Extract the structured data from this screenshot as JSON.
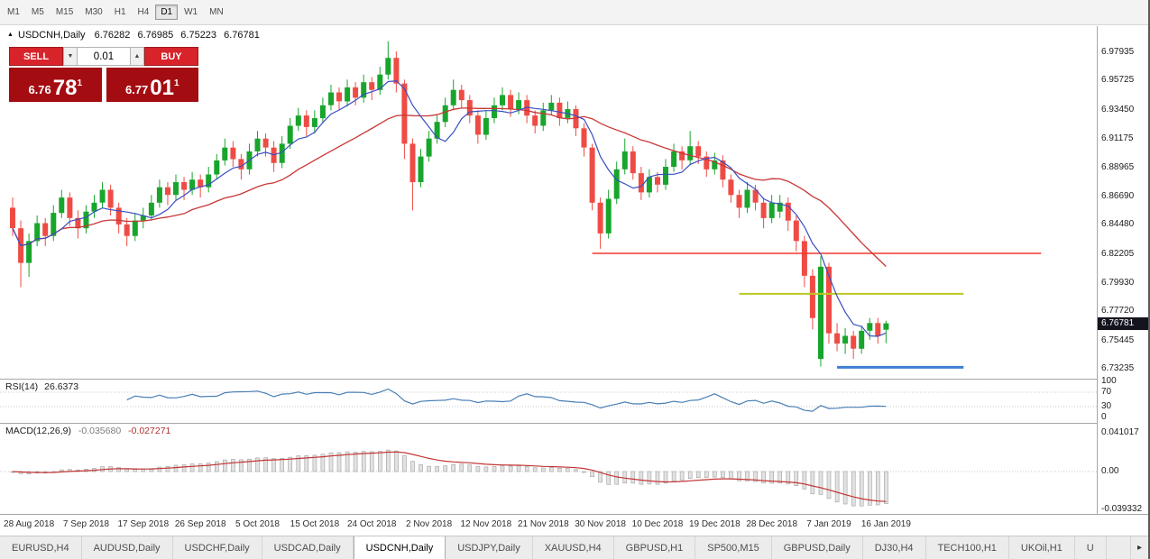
{
  "icons": {
    "symbol_marker": "▲",
    "volume_down": "▼",
    "volume_up": "▲",
    "tab_scroll_right": "▸"
  },
  "toolbar": {
    "timeframes": [
      "M1",
      "M5",
      "M15",
      "M30",
      "H1",
      "H4",
      "D1",
      "W1",
      "MN"
    ],
    "active": "D1"
  },
  "chart": {
    "title": "USDCNH,Daily",
    "open": "6.76282",
    "high": "6.76985",
    "low": "6.75223",
    "close": "6.76781"
  },
  "trade_panel": {
    "sell_label": "SELL",
    "buy_label": "BUY",
    "volume": "0.01",
    "sell_price_main": "6.76",
    "sell_price_big": "78",
    "sell_price_sup": "1",
    "buy_price_main": "6.77",
    "buy_price_big": "01",
    "buy_price_sup": "1"
  },
  "price_axis": {
    "labels": [
      "6.97935",
      "6.95725",
      "6.93450",
      "6.91175",
      "6.88965",
      "6.86690",
      "6.84480",
      "6.82205",
      "6.79930",
      "6.77720",
      "6.75445",
      "6.73235"
    ],
    "current": "6.76781"
  },
  "indicators": {
    "rsi": {
      "label": "RSI(14)",
      "value": "26.6373",
      "period": 14,
      "axis": [
        "100",
        "70",
        "30",
        "0"
      ]
    },
    "macd": {
      "label": "MACD(12,26,9)",
      "main_value": "-0.035680",
      "signal_value": "-0.027271",
      "params": [
        12,
        26,
        9
      ],
      "axis": [
        "0.041017",
        "0.00",
        "-0.039332"
      ]
    }
  },
  "date_axis": [
    "28 Aug 2018",
    "7 Sep 2018",
    "17 Sep 2018",
    "26 Sep 2018",
    "5 Oct 2018",
    "15 Oct 2018",
    "24 Oct 2018",
    "2 Nov 2018",
    "12 Nov 2018",
    "21 Nov 2018",
    "30 Nov 2018",
    "10 Dec 2018",
    "19 Dec 2018",
    "28 Dec 2018",
    "7 Jan 2019",
    "16 Jan 2019"
  ],
  "tabs": {
    "items": [
      "EURUSD,H4",
      "AUDUSD,Daily",
      "USDCHF,Daily",
      "USDCAD,Daily",
      "USDCNH,Daily",
      "USDJPY,Daily",
      "XAUUSD,H4",
      "GBPUSD,H1",
      "SP500,M15",
      "GBPUSD,Daily",
      "DJ30,H4",
      "TECH100,H1",
      "UKOil,H1",
      "U"
    ],
    "active": "USDCNH,Daily"
  },
  "chart_data": {
    "type": "candlestick",
    "symbol": "USDCNH",
    "timeframe": "Daily",
    "title": "USDCNH,Daily",
    "price_range": [
      6.73235,
      6.97935
    ],
    "x_labels": [
      "28 Aug 2018",
      "7 Sep 2018",
      "17 Sep 2018",
      "26 Sep 2018",
      "5 Oct 2018",
      "15 Oct 2018",
      "24 Oct 2018",
      "2 Nov 2018",
      "12 Nov 2018",
      "21 Nov 2018",
      "30 Nov 2018",
      "10 Dec 2018",
      "19 Dec 2018",
      "28 Dec 2018",
      "7 Jan 2019",
      "16 Jan 2019"
    ],
    "candles_per_label": 7,
    "first_label_index": 2,
    "ma_fast_period": 6,
    "ma_slow_period": 21,
    "current_price": 6.76781,
    "candles": [
      [
        6.858,
        6.866,
        6.836,
        6.842
      ],
      [
        6.842,
        6.848,
        6.796,
        6.815
      ],
      [
        6.815,
        6.838,
        6.804,
        6.832
      ],
      [
        6.832,
        6.852,
        6.828,
        6.846
      ],
      [
        6.846,
        6.85,
        6.828,
        6.836
      ],
      [
        6.836,
        6.86,
        6.832,
        6.854
      ],
      [
        6.854,
        6.872,
        6.85,
        6.866
      ],
      [
        6.866,
        6.87,
        6.844,
        6.85
      ],
      [
        6.85,
        6.856,
        6.834,
        6.842
      ],
      [
        6.842,
        6.86,
        6.838,
        6.855
      ],
      [
        6.855,
        6.868,
        6.85,
        6.862
      ],
      [
        6.862,
        6.878,
        6.858,
        6.872
      ],
      [
        6.872,
        6.876,
        6.852,
        6.858
      ],
      [
        6.858,
        6.862,
        6.838,
        6.845
      ],
      [
        6.845,
        6.85,
        6.828,
        6.836
      ],
      [
        6.836,
        6.854,
        6.832,
        6.848
      ],
      [
        6.848,
        6.858,
        6.842,
        6.852
      ],
      [
        6.852,
        6.868,
        6.848,
        6.862
      ],
      [
        6.862,
        6.88,
        6.858,
        6.874
      ],
      [
        6.874,
        6.878,
        6.86,
        6.868
      ],
      [
        6.868,
        6.884,
        6.864,
        6.878
      ],
      [
        6.878,
        6.882,
        6.864,
        6.872
      ],
      [
        6.872,
        6.886,
        6.868,
        6.88
      ],
      [
        6.88,
        6.884,
        6.866,
        6.874
      ],
      [
        6.874,
        6.89,
        6.87,
        6.884
      ],
      [
        6.884,
        6.9,
        6.88,
        6.895
      ],
      [
        6.895,
        6.912,
        6.891,
        6.905
      ],
      [
        6.905,
        6.91,
        6.89,
        6.896
      ],
      [
        6.896,
        6.9,
        6.88,
        6.888
      ],
      [
        6.888,
        6.908,
        6.884,
        6.902
      ],
      [
        6.902,
        6.918,
        6.898,
        6.912
      ],
      [
        6.912,
        6.916,
        6.898,
        6.905
      ],
      [
        6.905,
        6.91,
        6.886,
        6.893
      ],
      [
        6.893,
        6.914,
        6.889,
        6.908
      ],
      [
        6.908,
        6.928,
        6.904,
        6.922
      ],
      [
        6.922,
        6.936,
        6.918,
        6.93
      ],
      [
        6.93,
        6.934,
        6.914,
        6.921
      ],
      [
        6.921,
        6.934,
        6.916,
        6.928
      ],
      [
        6.928,
        6.944,
        6.924,
        6.938
      ],
      [
        6.938,
        6.954,
        6.934,
        6.948
      ],
      [
        6.948,
        6.952,
        6.934,
        6.941
      ],
      [
        6.941,
        6.958,
        6.937,
        6.952
      ],
      [
        6.952,
        6.956,
        6.938,
        6.944
      ],
      [
        6.944,
        6.962,
        6.94,
        6.956
      ],
      [
        6.956,
        6.96,
        6.942,
        6.95
      ],
      [
        6.95,
        6.968,
        6.946,
        6.962
      ],
      [
        6.962,
        6.988,
        6.958,
        6.975
      ],
      [
        6.975,
        6.98,
        6.948,
        6.955
      ],
      [
        6.955,
        6.958,
        6.896,
        6.908
      ],
      [
        6.908,
        6.912,
        6.856,
        6.878
      ],
      [
        6.878,
        6.904,
        6.874,
        6.898
      ],
      [
        6.898,
        6.918,
        6.894,
        6.912
      ],
      [
        6.912,
        6.93,
        6.908,
        6.925
      ],
      [
        6.925,
        6.944,
        6.921,
        6.938
      ],
      [
        6.938,
        6.958,
        6.934,
        6.95
      ],
      [
        6.95,
        6.954,
        6.936,
        6.942
      ],
      [
        6.942,
        6.946,
        6.924,
        6.93
      ],
      [
        6.93,
        6.934,
        6.908,
        6.915
      ],
      [
        6.915,
        6.934,
        6.911,
        6.928
      ],
      [
        6.928,
        6.944,
        6.924,
        6.938
      ],
      [
        6.938,
        6.952,
        6.934,
        6.946
      ],
      [
        6.946,
        6.95,
        6.929,
        6.935
      ],
      [
        6.935,
        6.948,
        6.931,
        6.942
      ],
      [
        6.942,
        6.946,
        6.924,
        6.93
      ],
      [
        6.93,
        6.934,
        6.916,
        6.922
      ],
      [
        6.922,
        6.94,
        6.918,
        6.934
      ],
      [
        6.934,
        6.946,
        6.93,
        6.94
      ],
      [
        6.94,
        6.944,
        6.922,
        6.928
      ],
      [
        6.928,
        6.941,
        6.924,
        6.935
      ],
      [
        6.935,
        6.938,
        6.914,
        6.92
      ],
      [
        6.92,
        6.924,
        6.898,
        6.905
      ],
      [
        6.905,
        6.908,
        6.856,
        6.862
      ],
      [
        6.862,
        6.866,
        6.826,
        6.838
      ],
      [
        6.838,
        6.872,
        6.834,
        6.865
      ],
      [
        6.865,
        6.894,
        6.861,
        6.888
      ],
      [
        6.888,
        6.912,
        6.884,
        6.902
      ],
      [
        6.902,
        6.906,
        6.88,
        6.885
      ],
      [
        6.885,
        6.89,
        6.864,
        6.87
      ],
      [
        6.87,
        6.888,
        6.866,
        6.882
      ],
      [
        6.882,
        6.886,
        6.87,
        6.876
      ],
      [
        6.876,
        6.896,
        6.872,
        6.89
      ],
      [
        6.89,
        6.908,
        6.886,
        6.902
      ],
      [
        6.902,
        6.906,
        6.888,
        6.895
      ],
      [
        6.895,
        6.918,
        6.891,
        6.906
      ],
      [
        6.906,
        6.91,
        6.892,
        6.898
      ],
      [
        6.898,
        6.902,
        6.882,
        6.888
      ],
      [
        6.888,
        6.901,
        6.884,
        6.895
      ],
      [
        6.895,
        6.899,
        6.874,
        6.88
      ],
      [
        6.88,
        6.884,
        6.862,
        6.868
      ],
      [
        6.868,
        6.872,
        6.85,
        6.858
      ],
      [
        6.858,
        6.878,
        6.854,
        6.872
      ],
      [
        6.872,
        6.876,
        6.856,
        6.862
      ],
      [
        6.862,
        6.866,
        6.842,
        6.85
      ],
      [
        6.85,
        6.868,
        6.846,
        6.862
      ],
      [
        6.855,
        6.868,
        6.85,
        6.862
      ],
      [
        6.862,
        6.866,
        6.84,
        6.848
      ],
      [
        6.848,
        6.852,
        6.824,
        6.832
      ],
      [
        6.832,
        6.836,
        6.796,
        6.805
      ],
      [
        6.805,
        6.81,
        6.763,
        6.772
      ],
      [
        6.74,
        6.82,
        6.734,
        6.812
      ],
      [
        6.812,
        6.815,
        6.752,
        6.76
      ],
      [
        6.76,
        6.768,
        6.746,
        6.752
      ],
      [
        6.752,
        6.764,
        6.744,
        6.758
      ],
      [
        6.758,
        6.762,
        6.74,
        6.748
      ],
      [
        6.748,
        6.766,
        6.744,
        6.762
      ],
      [
        6.762,
        6.772,
        6.755,
        6.768
      ],
      [
        6.768,
        6.772,
        6.752,
        6.758
      ],
      [
        6.76282,
        6.76985,
        6.75223,
        6.76781
      ]
    ],
    "hlines": [
      {
        "price": 6.8224,
        "from_index": 71,
        "to_index": 126,
        "color": "#f3392c",
        "width": 1.6
      },
      {
        "price": 6.7908,
        "from_index": 89,
        "to_index": 116.5,
        "color": "#bcc722",
        "width": 2
      },
      {
        "price": 6.7335,
        "from_index": 101,
        "to_index": 116.5,
        "color": "#3e7fd4",
        "width": 3
      }
    ],
    "colors": {
      "up": "#18a52c",
      "down": "#ef4b45",
      "ma_fast": "#3a4fc0",
      "ma_slow": "#c93636",
      "rsi_line": "#4a7fb5",
      "macd_hist_fill": "#e2e2e2",
      "macd_hist_border": "#9f9f9f",
      "macd_signal": "#c33434",
      "level_dotted": "#c9c9c9"
    }
  }
}
